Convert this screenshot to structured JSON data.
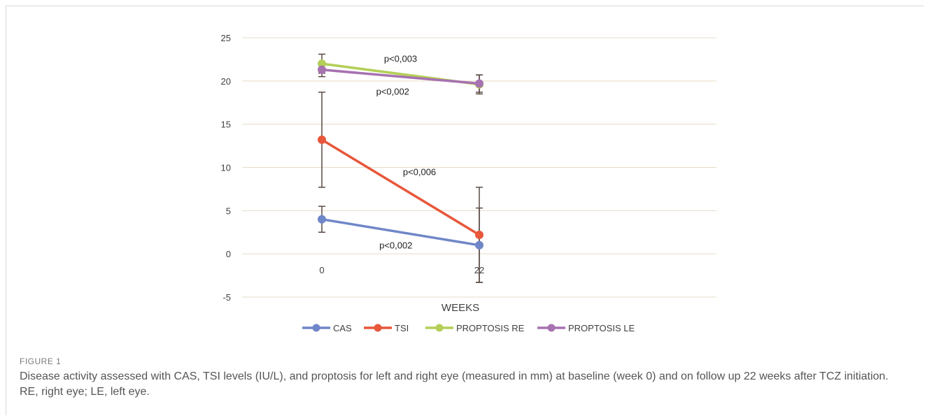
{
  "chart_data": {
    "type": "line",
    "categories": [
      "0",
      "22"
    ],
    "xlabel": "WEEKS",
    "ylabel": "",
    "ylim": [
      -5,
      25
    ],
    "yticks": [
      -5,
      0,
      5,
      10,
      15,
      20,
      25
    ],
    "grid": true,
    "legend_position": "bottom",
    "series": [
      {
        "name": "CAS",
        "color": "#6f87c8",
        "values": [
          4.0,
          1.0
        ],
        "error": [
          1.5,
          4.3
        ]
      },
      {
        "name": "TSI",
        "color": "#e8573a",
        "values": [
          13.2,
          2.2
        ],
        "error": [
          5.5,
          5.5
        ]
      },
      {
        "name": "PROPTOSIS RE",
        "color": "#b3cf57",
        "values": [
          22.0,
          19.6
        ],
        "error": [
          1.1,
          1.1
        ]
      },
      {
        "name": "PROPTOSIS LE",
        "color": "#a772b0",
        "values": [
          21.3,
          19.7
        ],
        "error": [
          0.8,
          1.0
        ]
      }
    ],
    "annotations": [
      {
        "text": "p<0,003",
        "x": 0.5,
        "y": 22.2
      },
      {
        "text": "p<0,002",
        "x": 0.45,
        "y": 18.4
      },
      {
        "text": "p<0,006",
        "x": 0.62,
        "y": 9.1
      },
      {
        "text": "p<0,002",
        "x": 0.47,
        "y": 0.6
      }
    ]
  },
  "caption": {
    "label": "FIGURE 1",
    "text": "Disease activity assessed with CAS, TSI levels (IU/L), and proptosis for left and right eye (measured in mm) at baseline (week 0) and on follow up 22 weeks after TCZ initiation. RE, right eye; LE, left eye."
  }
}
